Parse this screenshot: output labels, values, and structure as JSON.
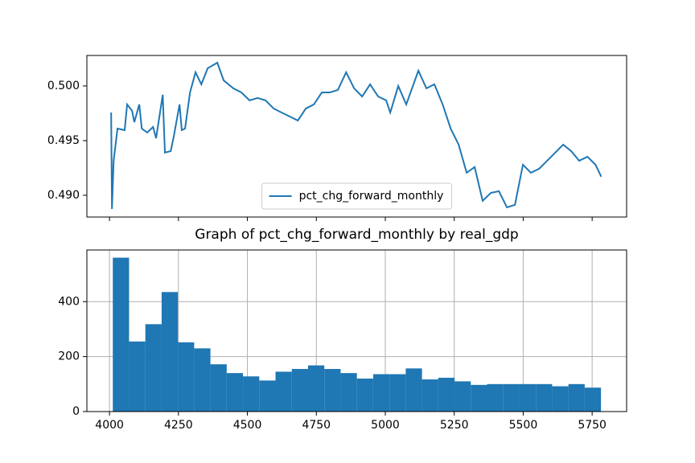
{
  "chart_data": [
    {
      "type": "line",
      "x": [
        4006,
        4009,
        4015,
        4029,
        4055,
        4064,
        4082,
        4090,
        4108,
        4117,
        4137,
        4158,
        4169,
        4193,
        4201,
        4222,
        4233,
        4254,
        4262,
        4274,
        4292,
        4312,
        4333,
        4356,
        4391,
        4414,
        4449,
        4478,
        4508,
        4537,
        4566,
        4595,
        4624,
        4653,
        4683,
        4712,
        4741,
        4770,
        4799,
        4828,
        4858,
        4887,
        4916,
        4945,
        4974,
        5003,
        5018,
        5047,
        5076,
        5120,
        5149,
        5178,
        5208,
        5237,
        5266,
        5295,
        5324,
        5353,
        5383,
        5412,
        5441,
        5470,
        5499,
        5528,
        5558,
        5587,
        5616,
        5645,
        5674,
        5703,
        5733,
        5762,
        5783
      ],
      "series": [
        {
          "name": "pct_chg_forward_monthly",
          "color": "#1f77b4",
          "values": [
            0.49757,
            0.48875,
            0.49316,
            0.4961,
            0.49596,
            0.49831,
            0.49772,
            0.49669,
            0.49831,
            0.4961,
            0.49574,
            0.49625,
            0.49522,
            0.49919,
            0.4939,
            0.49404,
            0.49537,
            0.49831,
            0.49596,
            0.4961,
            0.49941,
            0.50125,
            0.50015,
            0.50162,
            0.50213,
            0.50051,
            0.49978,
            0.49941,
            0.49868,
            0.4989,
            0.49868,
            0.49794,
            0.49757,
            0.49721,
            0.49684,
            0.49794,
            0.49831,
            0.49941,
            0.49941,
            0.49963,
            0.50125,
            0.49978,
            0.49904,
            0.50015,
            0.49904,
            0.49868,
            0.49757,
            0.5,
            0.49831,
            0.5014,
            0.49978,
            0.50015,
            0.49831,
            0.4961,
            0.49463,
            0.49206,
            0.49258,
            0.48949,
            0.49022,
            0.49037,
            0.4889,
            0.48912,
            0.4928,
            0.49206,
            0.49243,
            0.49316,
            0.4939,
            0.49463,
            0.49404,
            0.49316,
            0.49353,
            0.4928,
            0.4917
          ]
        }
      ],
      "xlim": [
        3918,
        5875
      ],
      "xticks": [
        4000,
        4250,
        4500,
        4750,
        5000,
        5250,
        5500,
        5750
      ],
      "xtick_labels": false,
      "ylim": [
        0.48801,
        0.50279
      ],
      "yticks": [
        {
          "value": 0.49,
          "label": "0.490"
        },
        0.495,
        {
          "value": 0.5,
          "label": "0.500"
        }
      ],
      "legend": "lower center",
      "grid": false
    },
    {
      "type": "histogram",
      "title": "Graph of pct_chg_forward_monthly by real_gdp",
      "bins": [
        4012,
        4071,
        4130,
        4189,
        4248,
        4307,
        4366,
        4425,
        4484,
        4543,
        4602,
        4661,
        4720,
        4779,
        4838,
        4897,
        4956,
        5015,
        5074,
        5133,
        5192,
        5251,
        5310,
        5369,
        5428,
        5487,
        5546,
        5605,
        5664,
        5723,
        5782
      ],
      "values": [
        560,
        255,
        318,
        435,
        252,
        230,
        172,
        140,
        128,
        113,
        145,
        155,
        168,
        155,
        140,
        120,
        136,
        136,
        157,
        117,
        123,
        110,
        97,
        100,
        100,
        100,
        100,
        92,
        100,
        87
      ],
      "color": "#1f77b4",
      "xlim": [
        3918,
        5875
      ],
      "xticks": [
        4000,
        4250,
        4500,
        4750,
        5000,
        5250,
        5500,
        5750
      ],
      "ylim": [
        0,
        588
      ],
      "yticks": [
        0,
        200,
        400
      ],
      "grid": true
    }
  ]
}
